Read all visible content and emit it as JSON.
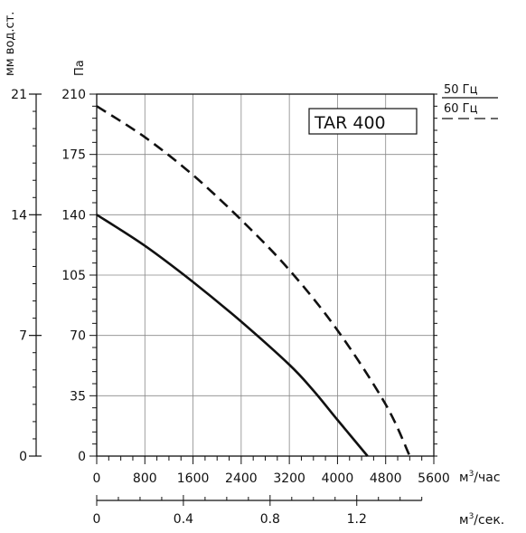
{
  "chart_data": {
    "type": "line",
    "title": "TAR 400",
    "y_unit_left": "мм вод.ст.",
    "y_unit_pa": "Па",
    "x_unit_m3h": "м³/час",
    "x_unit_m3s": "м³/сек.",
    "x_unit_m3h_base": "м",
    "x_unit_m3h_sup": "3",
    "x_unit_m3h_tail": "/час",
    "x_unit_m3s_base": "м",
    "x_unit_m3s_sup": "3",
    "x_unit_m3s_tail": "/сек.",
    "xlim": [
      0,
      5600
    ],
    "ylim": [
      0,
      210
    ],
    "x_ticks": [
      "0",
      "800",
      "1600",
      "2400",
      "3200",
      "4000",
      "4800",
      "5600"
    ],
    "y_ticks_pa": [
      "0",
      "35",
      "70",
      "105",
      "140",
      "175",
      "210"
    ],
    "y_ticks_mm": [
      "0",
      "7",
      "14",
      "21"
    ],
    "x2_ticks": [
      "0",
      "0.4",
      "0.8",
      "1.2"
    ],
    "grid": true,
    "legend_position": "top-right",
    "series": [
      {
        "name": "50 Гц",
        "line_style": "solid",
        "color": "#111111",
        "points": [
          [
            0,
            140
          ],
          [
            800,
            122
          ],
          [
            1600,
            101
          ],
          [
            2400,
            78
          ],
          [
            3200,
            53
          ],
          [
            3600,
            38
          ],
          [
            4000,
            21
          ],
          [
            4500,
            0
          ]
        ]
      },
      {
        "name": "60 Гц",
        "line_style": "dashed",
        "color": "#111111",
        "points": [
          [
            0,
            203
          ],
          [
            800,
            185
          ],
          [
            1600,
            163
          ],
          [
            2400,
            137
          ],
          [
            3200,
            108
          ],
          [
            4000,
            73
          ],
          [
            4800,
            30
          ],
          [
            5200,
            0
          ]
        ]
      }
    ]
  }
}
